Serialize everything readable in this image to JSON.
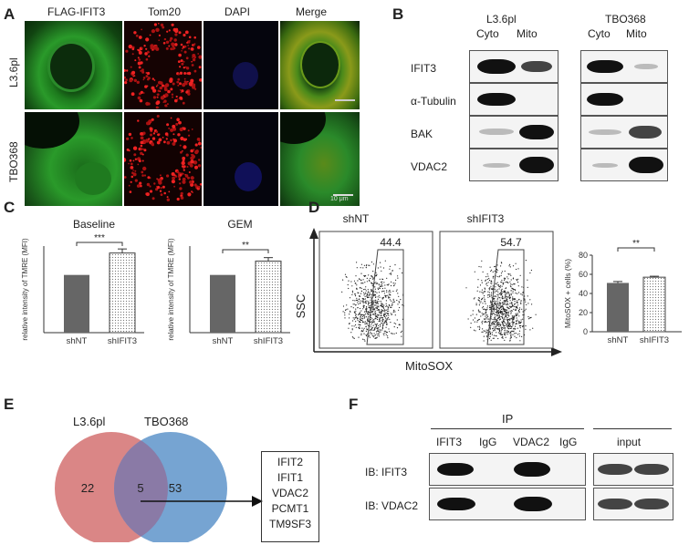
{
  "panels": {
    "A": "A",
    "B": "B",
    "C": "C",
    "D": "D",
    "E": "E",
    "F": "F"
  },
  "panel_a": {
    "columns": [
      "FLAG-IFIT3",
      "Tom20",
      "DAPI",
      "Merge"
    ],
    "rows": [
      "L3.6pl",
      "TBO368"
    ],
    "scalebar": "10 μm"
  },
  "panel_b": {
    "groups": [
      {
        "name": "L3.6pl",
        "lanes": [
          "Cyto",
          "Mito"
        ]
      },
      {
        "name": "TBO368",
        "lanes": [
          "Cyto",
          "Mito"
        ]
      }
    ],
    "proteins": [
      "IFIT3",
      "α-Tubulin",
      "BAK",
      "VDAC2"
    ]
  },
  "panel_c": {
    "ylabel": "relative intensity of TMRE (MFI)",
    "charts": [
      {
        "title": "Baseline",
        "significance": "***"
      },
      {
        "title": "GEM",
        "significance": "**"
      }
    ]
  },
  "panel_d": {
    "plots": [
      {
        "title": "shNT",
        "gate_value": "44.4"
      },
      {
        "title": "shIFIT3",
        "gate_value": "54.7"
      }
    ],
    "xlabel": "MitoSOX",
    "ylabel": "SSC",
    "bar_ylabel": "MitoSOX + cells (%)",
    "significance": "**"
  },
  "panel_e": {
    "set_labels": [
      "L3.6pl",
      "TBO368"
    ],
    "counts": {
      "left_only": "22",
      "both": "5",
      "right_only": "53"
    },
    "overlap_genes": [
      "IFIT2",
      "IFIT1",
      "VDAC2",
      "PCMT1",
      "TM9SF3"
    ],
    "colors": {
      "left": "#d87f7f",
      "right": "#6f9fd0",
      "overlap": "#8a7aa6"
    }
  },
  "panel_f": {
    "ip_header": "IP",
    "ip_lanes": [
      "IFIT3",
      "IgG",
      "VDAC2",
      "IgG"
    ],
    "input_label": "input",
    "rows": [
      "IB: IFIT3",
      "IB: VDAC2"
    ]
  },
  "chart_data": [
    {
      "type": "bar",
      "title": "Baseline",
      "categories": [
        "shNT",
        "shIFIT3"
      ],
      "values": [
        1.0,
        1.38
      ],
      "errors": [
        0,
        0.07
      ],
      "ylabel": "relative intensity of TMRE (MFI)",
      "ylim": [
        0,
        1.5
      ]
    },
    {
      "type": "bar",
      "title": "GEM",
      "categories": [
        "shNT",
        "shIFIT3"
      ],
      "values": [
        1.0,
        1.24
      ],
      "errors": [
        0,
        0.06
      ],
      "ylabel": "relative intensity of TMRE (MFI)",
      "ylim": [
        0,
        1.5
      ]
    },
    {
      "type": "bar",
      "title": "",
      "categories": [
        "shNT",
        "shIFIT3"
      ],
      "values": [
        51,
        57
      ],
      "errors": [
        1.5,
        1.0
      ],
      "ylabel": "MitoSOX + cells (%)",
      "ylim": [
        0,
        80
      ],
      "yticks": [
        "0",
        "20",
        "40",
        "60",
        "80"
      ]
    }
  ]
}
